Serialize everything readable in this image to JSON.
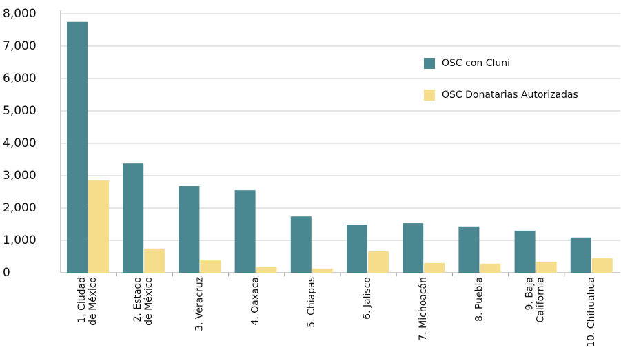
{
  "chart_data": {
    "type": "bar",
    "categories": [
      [
        "1. Ciudad",
        "de México"
      ],
      [
        "2. Estado",
        "de México"
      ],
      [
        "3. Veracruz"
      ],
      [
        "4. Oaxaca"
      ],
      [
        "5. Chiapas"
      ],
      [
        "6. Jalisco"
      ],
      [
        "7. Michoacán"
      ],
      [
        "8. Puebla"
      ],
      [
        "9. Baja",
        "California"
      ],
      [
        "10. Chihuahua"
      ]
    ],
    "series": [
      {
        "name": "OSC con Cluni",
        "color": "#4a8790",
        "values": [
          7750,
          3380,
          2680,
          2550,
          1740,
          1490,
          1530,
          1430,
          1300,
          1090
        ]
      },
      {
        "name": "OSC Donatarias Autorizadas",
        "color": "#f6dd8c",
        "values": [
          2850,
          750,
          380,
          170,
          130,
          660,
          300,
          280,
          340,
          450
        ]
      }
    ],
    "ylim": [
      0,
      8000
    ],
    "yticks": [
      0,
      {
        "value": 1000,
        "label": "1,000"
      },
      {
        "value": 2000,
        "label": "2,000"
      },
      {
        "value": 3000,
        "label": "3,000"
      },
      {
        "value": 4000,
        "label": "4,000"
      },
      {
        "value": 5000,
        "label": "5,000"
      },
      {
        "value": 6000,
        "label": "6,000"
      },
      {
        "value": 7000,
        "label": "7,000"
      },
      {
        "value": 8000,
        "label": "8,000"
      }
    ],
    "grid": true,
    "legend": "top-right"
  }
}
